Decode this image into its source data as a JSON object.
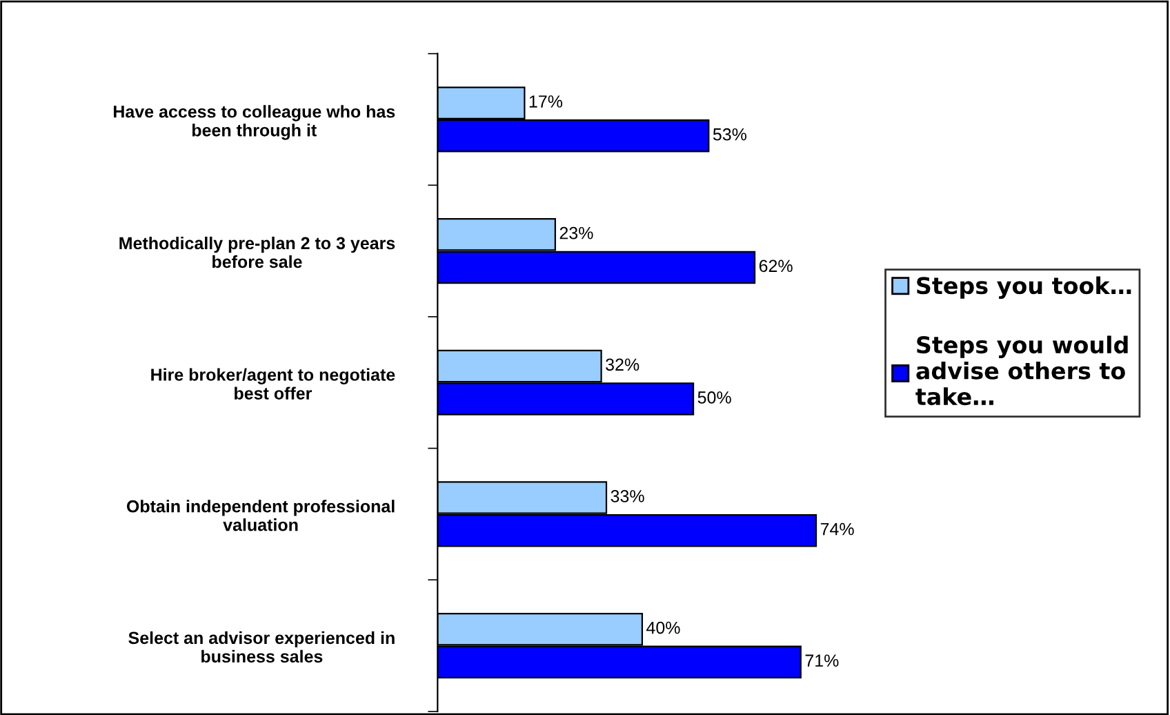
{
  "chart_data": {
    "type": "bar",
    "orientation": "horizontal",
    "categories": [
      "Have access to colleague who has\nbeen through it",
      "Methodically pre-plan 2 to 3 years\nbefore sale",
      "Hire broker/agent to negotiate\nbest offer",
      "Obtain independent professional\nvaluation",
      "Select an advisor experienced in\nbusiness sales"
    ],
    "series": [
      {
        "name": "Steps you took…",
        "color": "#99ccff",
        "values": [
          17,
          23,
          32,
          33,
          40
        ],
        "value_labels": [
          "17%",
          "23%",
          "32%",
          "33%",
          "40%"
        ]
      },
      {
        "name": "Steps you would\nadvise others to\ntake…",
        "color": "#0000ff",
        "values": [
          53,
          62,
          50,
          74,
          71
        ],
        "value_labels": [
          "53%",
          "62%",
          "50%",
          "74%",
          "71%"
        ]
      }
    ],
    "legend": "right",
    "grid": false
  }
}
